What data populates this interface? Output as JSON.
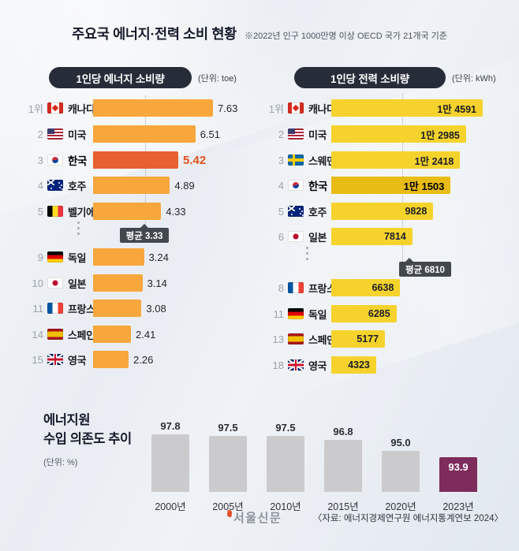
{
  "header": {
    "title": "주요국 에너지·전력 소비 현황",
    "note": "※2022년 인구 1000만명 이상 OECD 국가 21개국 기준"
  },
  "chart_data": [
    {
      "type": "bar",
      "orientation": "horizontal",
      "title": "1인당 에너지 소비량",
      "unit_label": "(단위: toe)",
      "unit": "toe",
      "xmax": 7.63,
      "average_value": 3.33,
      "average_label": "평균 3.33",
      "highlight_country": "한국",
      "rows": [
        {
          "rank": "1위",
          "country": "캐나다",
          "flag": "canada",
          "value": 7.63,
          "value_label": "7.63",
          "highlight": false
        },
        {
          "rank": "2",
          "country": "미국",
          "flag": "usa",
          "value": 6.51,
          "value_label": "6.51",
          "highlight": false
        },
        {
          "rank": "3",
          "country": "한국",
          "flag": "korea",
          "value": 5.42,
          "value_label": "5.42",
          "highlight": true
        },
        {
          "rank": "4",
          "country": "호주",
          "flag": "australia",
          "value": 4.89,
          "value_label": "4.89",
          "highlight": false
        },
        {
          "rank": "5",
          "country": "벨기에",
          "flag": "belgium",
          "value": 4.33,
          "value_label": "4.33",
          "highlight": false
        },
        {
          "rank": "9",
          "country": "독일",
          "flag": "germany",
          "value": 3.24,
          "value_label": "3.24",
          "highlight": false
        },
        {
          "rank": "10",
          "country": "일본",
          "flag": "japan",
          "value": 3.14,
          "value_label": "3.14",
          "highlight": false
        },
        {
          "rank": "11",
          "country": "프랑스",
          "flag": "france",
          "value": 3.08,
          "value_label": "3.08",
          "highlight": false
        },
        {
          "rank": "14",
          "country": "스페인",
          "flag": "spain",
          "value": 2.41,
          "value_label": "2.41",
          "highlight": false
        },
        {
          "rank": "15",
          "country": "영국",
          "flag": "uk",
          "value": 2.26,
          "value_label": "2.26",
          "highlight": false
        }
      ]
    },
    {
      "type": "bar",
      "orientation": "horizontal",
      "title": "1인당 전력 소비량",
      "unit_label": "(단위: kWh)",
      "unit": "kWh",
      "xmax": 14591,
      "average_value": 6810,
      "average_label": "평균 6810",
      "highlight_country": "한국",
      "rows": [
        {
          "rank": "1위",
          "country": "캐나다",
          "flag": "canada",
          "value": 14591,
          "value_label": "1만 4591",
          "highlight": false
        },
        {
          "rank": "2",
          "country": "미국",
          "flag": "usa",
          "value": 12985,
          "value_label": "1만 2985",
          "highlight": false
        },
        {
          "rank": "3",
          "country": "스웨덴",
          "flag": "sweden",
          "value": 12418,
          "value_label": "1만 2418",
          "highlight": false
        },
        {
          "rank": "4",
          "country": "한국",
          "flag": "korea",
          "value": 11503,
          "value_label": "1만 1503",
          "highlight": true
        },
        {
          "rank": "5",
          "country": "호주",
          "flag": "australia",
          "value": 9828,
          "value_label": "9828",
          "highlight": false
        },
        {
          "rank": "6",
          "country": "일본",
          "flag": "japan",
          "value": 7814,
          "value_label": "7814",
          "highlight": false
        },
        {
          "rank": "8",
          "country": "프랑스",
          "flag": "france",
          "value": 6638,
          "value_label": "6638",
          "highlight": false
        },
        {
          "rank": "11",
          "country": "독일",
          "flag": "germany",
          "value": 6285,
          "value_label": "6285",
          "highlight": false
        },
        {
          "rank": "13",
          "country": "스페인",
          "flag": "spain",
          "value": 5177,
          "value_label": "5177",
          "highlight": false
        },
        {
          "rank": "18",
          "country": "영국",
          "flag": "uk",
          "value": 4323,
          "value_label": "4323",
          "highlight": false
        }
      ]
    },
    {
      "type": "bar",
      "orientation": "vertical",
      "title_line1": "에너지원",
      "title_line2": "수입 의존도 추이",
      "unit_label": "(단위: %)",
      "categories": [
        "2000년",
        "2005년",
        "2010년",
        "2015년",
        "2020년",
        "2023년"
      ],
      "values": [
        97.8,
        97.5,
        97.5,
        96.8,
        95.0,
        93.9
      ],
      "value_labels": [
        "97.8",
        "97.5",
        "97.5",
        "96.8",
        "95.0",
        "93.9"
      ],
      "ybase": 88,
      "ylim": [
        88,
        100
      ],
      "highlight_index": 5
    }
  ],
  "footer": {
    "logo": "서울신문",
    "source": "〈자료: 에너지경제연구원 에너지통계연보 2024〉"
  }
}
